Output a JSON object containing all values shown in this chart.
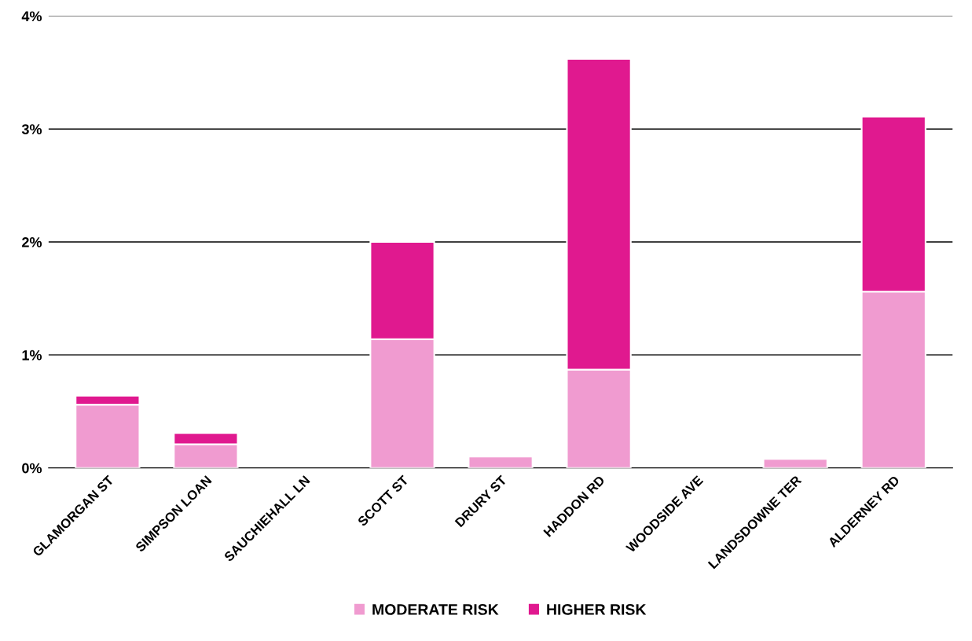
{
  "chart_data": {
    "type": "bar",
    "stacked": true,
    "categories": [
      "GLAMORGAN ST",
      "SIMPSON LOAN",
      "SAUCHIEHALL LN",
      "SCOTT ST",
      "DRURY ST",
      "HADDON RD",
      "WOODSIDE AVE",
      "LANDSDOWNE TER",
      "ALDERNEY RD"
    ],
    "series": [
      {
        "name": "MODERATE RISK",
        "color": "#f09bd0",
        "values": [
          0.56,
          0.21,
          null,
          1.14,
          0.1,
          0.87,
          null,
          0.08,
          1.56
        ]
      },
      {
        "name": "HIGHER RISK",
        "color": "#e0198f",
        "values": [
          0.08,
          0.1,
          null,
          0.86,
          null,
          2.75,
          null,
          null,
          1.55
        ]
      }
    ],
    "ylim": [
      0,
      4
    ],
    "yticks": [
      {
        "value": 0,
        "label": "0%"
      },
      {
        "value": 1,
        "label": "1%"
      },
      {
        "value": 2,
        "label": "2%"
      },
      {
        "value": 3,
        "label": "3%"
      },
      {
        "value": 4,
        "label": "4%"
      }
    ],
    "grid": "y",
    "legend": "bottom"
  }
}
